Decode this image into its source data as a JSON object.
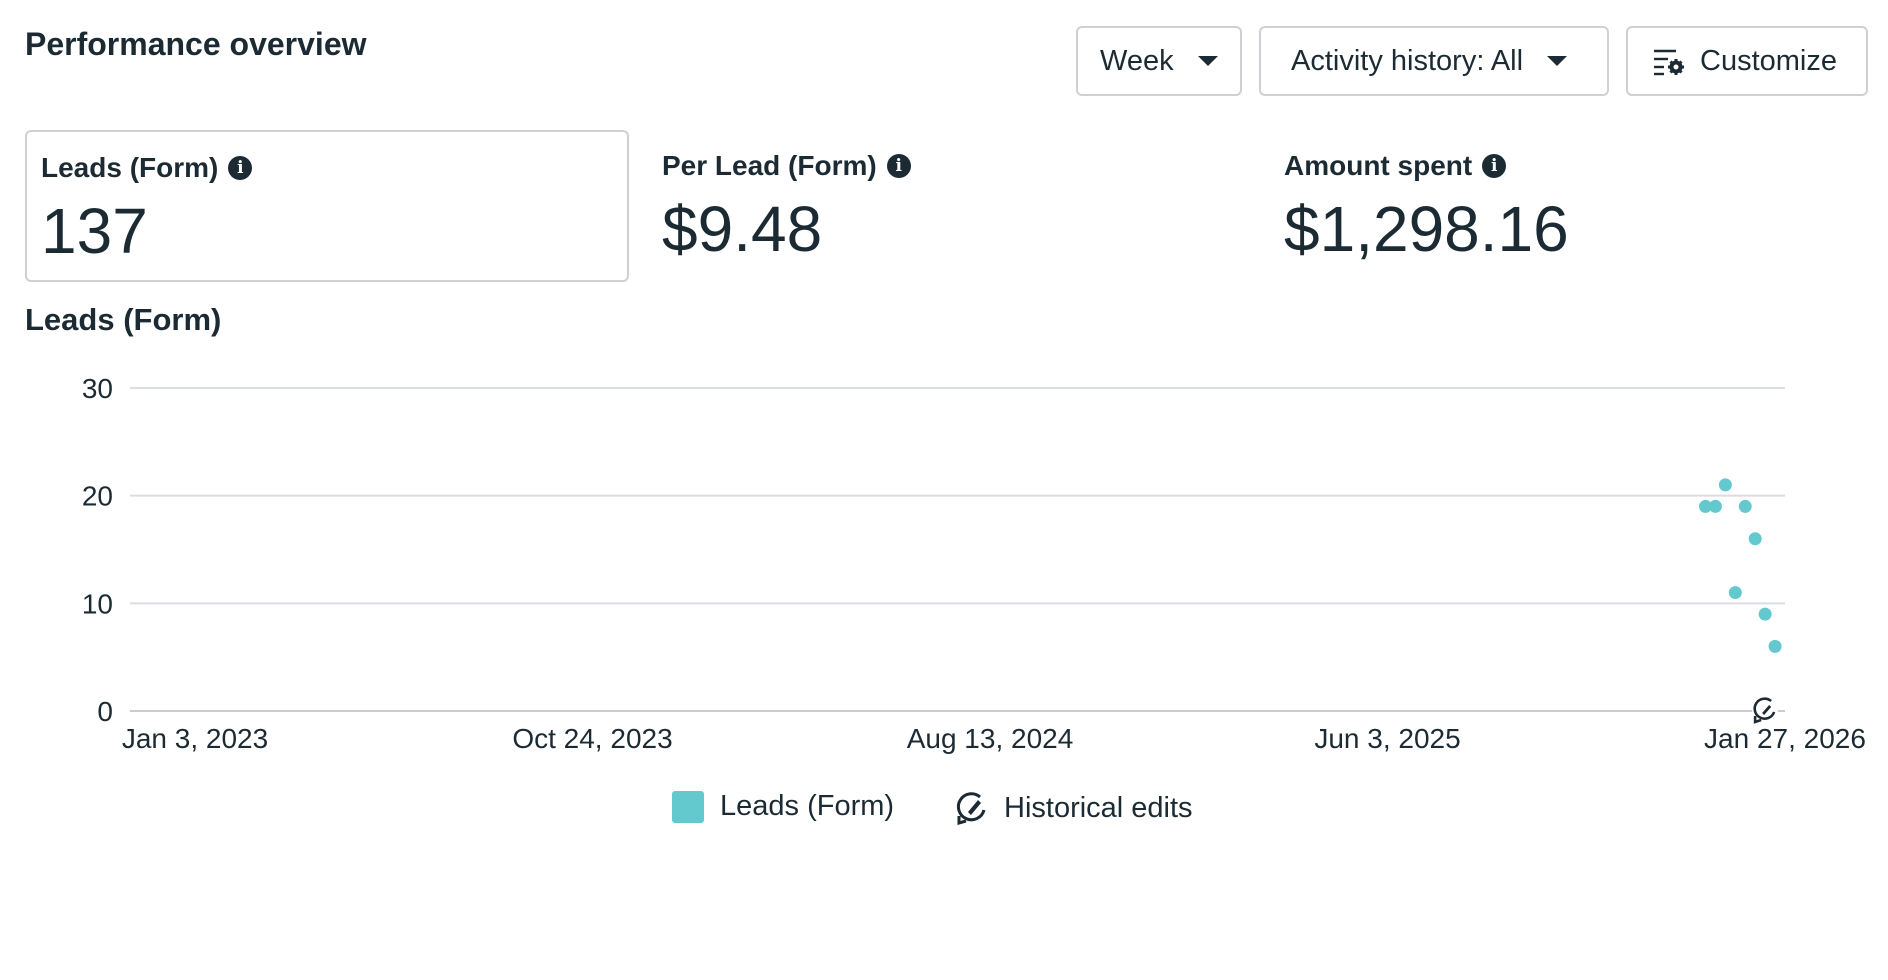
{
  "header": {
    "title": "Performance overview",
    "week_label": "Week",
    "activity_label": "Activity history: All",
    "customize_label": "Customize"
  },
  "metrics": [
    {
      "label": "Leads (Form)",
      "value": "137"
    },
    {
      "label": "Per Lead (Form)",
      "value": "$9.48"
    },
    {
      "label": "Amount spent",
      "value": "$1,298.16"
    }
  ],
  "chart_title": "Leads (Form)",
  "legend": {
    "series_label": "Leads (Form)",
    "edits_label": "Historical edits"
  },
  "colors": {
    "series": "#63c9cf",
    "grid": "#dadde1"
  },
  "chart_data": {
    "type": "scatter",
    "x_tick_labels": [
      "Jan 3, 2023",
      "Oct 24, 2023",
      "Aug 13, 2024",
      "Jun 3, 2025",
      "Jan 27, 2026"
    ],
    "y_ticks": [
      0,
      10,
      20,
      30
    ],
    "ylim": [
      0,
      30
    ],
    "xlim": [
      "2023-01-03",
      "2026-01-27"
    ],
    "series": [
      {
        "name": "Leads (Form)",
        "points": [
          {
            "x": "2025-12-02",
            "y": 19
          },
          {
            "x": "2025-12-09",
            "y": 19
          },
          {
            "x": "2025-12-16",
            "y": 21
          },
          {
            "x": "2025-12-23",
            "y": 11
          },
          {
            "x": "2025-12-30",
            "y": 19
          },
          {
            "x": "2026-01-06",
            "y": 16
          },
          {
            "x": "2026-01-13",
            "y": 9
          },
          {
            "x": "2026-01-20",
            "y": 6
          }
        ]
      }
    ],
    "grid": true,
    "historical_edit_x": "2026-01-13"
  }
}
